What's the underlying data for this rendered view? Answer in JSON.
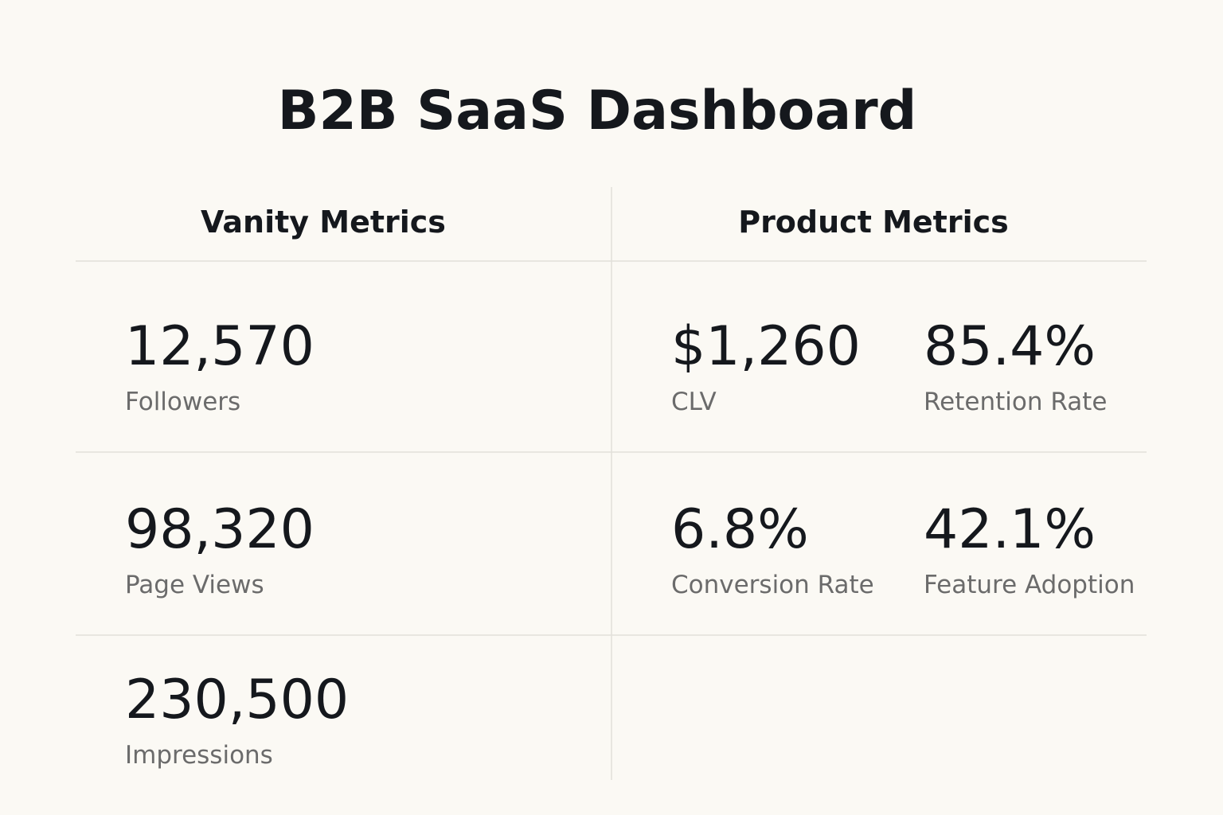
{
  "title": "B2B SaaS Dashboard",
  "sections": [
    {
      "heading": "Vanity Metrics",
      "metrics": [
        {
          "value": "12,570",
          "label": "Followers"
        },
        {
          "value": "98,320",
          "label": "Page Views"
        },
        {
          "value": "230,500",
          "label": "Impressions"
        }
      ]
    },
    {
      "heading": "Product Metrics",
      "metrics": [
        {
          "value": "$1,260",
          "label": "CLV"
        },
        {
          "value": "85.4%",
          "label": "Retention Rate"
        },
        {
          "value": "6.8%",
          "label": "Conversion Rate"
        },
        {
          "value": "42.1%",
          "label": "Feature Adoption"
        }
      ]
    }
  ]
}
